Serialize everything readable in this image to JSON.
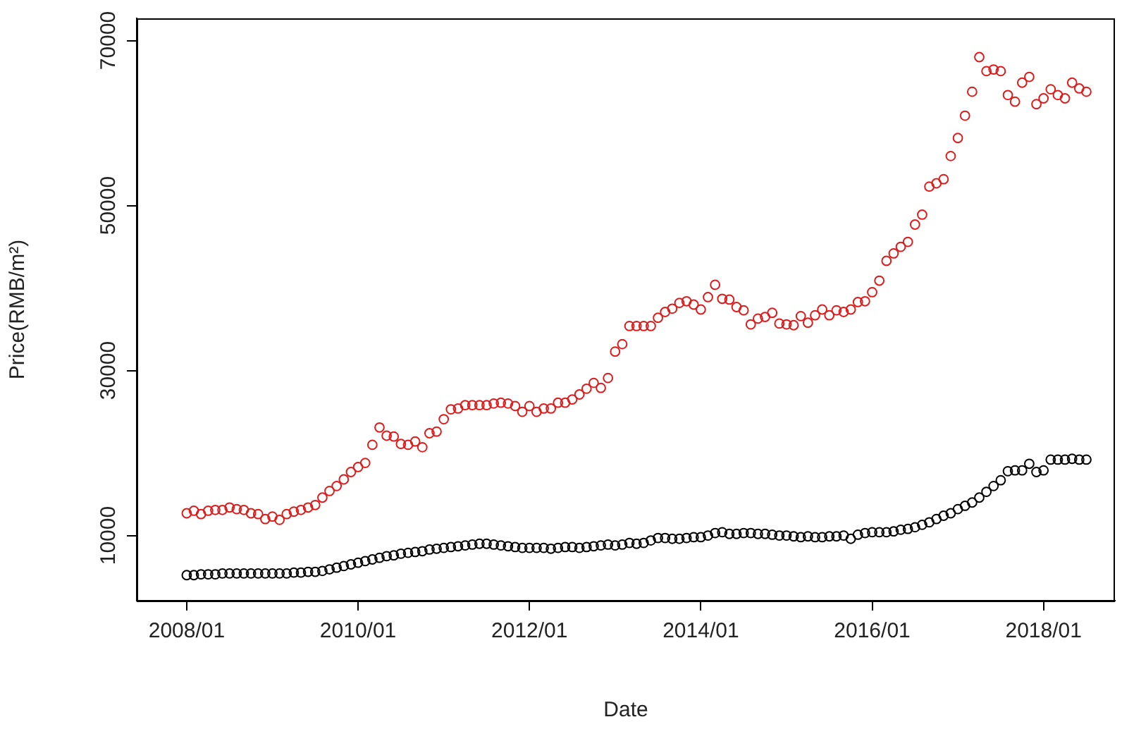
{
  "chart_data": {
    "type": "scatter",
    "xlabel": "Date",
    "ylabel": "Price(RMB/m²)",
    "marker": "circle",
    "x": [
      "2008-01",
      "2008-02",
      "2008-03",
      "2008-04",
      "2008-05",
      "2008-06",
      "2008-07",
      "2008-08",
      "2008-09",
      "2008-10",
      "2008-11",
      "2008-12",
      "2009-01",
      "2009-02",
      "2009-03",
      "2009-04",
      "2009-05",
      "2009-06",
      "2009-07",
      "2009-08",
      "2009-09",
      "2009-10",
      "2009-11",
      "2009-12",
      "2010-01",
      "2010-02",
      "2010-03",
      "2010-04",
      "2010-05",
      "2010-06",
      "2010-07",
      "2010-08",
      "2010-09",
      "2010-10",
      "2010-11",
      "2010-12",
      "2011-01",
      "2011-02",
      "2011-03",
      "2011-04",
      "2011-05",
      "2011-06",
      "2011-07",
      "2011-08",
      "2011-09",
      "2011-10",
      "2011-11",
      "2011-12",
      "2012-01",
      "2012-02",
      "2012-03",
      "2012-04",
      "2012-05",
      "2012-06",
      "2012-07",
      "2012-08",
      "2012-09",
      "2012-10",
      "2012-11",
      "2012-12",
      "2013-01",
      "2013-02",
      "2013-03",
      "2013-04",
      "2013-05",
      "2013-06",
      "2013-07",
      "2013-08",
      "2013-09",
      "2013-10",
      "2013-11",
      "2013-12",
      "2014-01",
      "2014-02",
      "2014-03",
      "2014-04",
      "2014-05",
      "2014-06",
      "2014-07",
      "2014-08",
      "2014-09",
      "2014-10",
      "2014-11",
      "2014-12",
      "2015-01",
      "2015-02",
      "2015-03",
      "2015-04",
      "2015-05",
      "2015-06",
      "2015-07",
      "2015-08",
      "2015-09",
      "2015-10",
      "2015-11",
      "2015-12",
      "2016-01",
      "2016-02",
      "2016-03",
      "2016-04",
      "2016-05",
      "2016-06",
      "2016-07",
      "2016-08",
      "2016-09",
      "2016-10",
      "2016-11",
      "2016-12",
      "2017-01",
      "2017-02",
      "2017-03",
      "2017-04",
      "2017-05",
      "2017-06",
      "2017-07",
      "2017-08",
      "2017-09",
      "2017-10",
      "2017-11",
      "2017-12",
      "2018-01",
      "2018-02",
      "2018-03",
      "2018-04",
      "2018-05",
      "2018-06",
      "2018-07"
    ],
    "series": [
      {
        "color": "#dd1c1c",
        "values": [
          12700,
          13000,
          12600,
          13000,
          13100,
          13100,
          13400,
          13200,
          13100,
          12700,
          12600,
          12000,
          12300,
          11900,
          12600,
          12900,
          13100,
          13400,
          13700,
          14600,
          15400,
          16000,
          16800,
          17700,
          18300,
          18800,
          21000,
          23100,
          22100,
          22000,
          21100,
          21000,
          21400,
          20700,
          22400,
          22600,
          24100,
          25300,
          25400,
          25800,
          25800,
          25800,
          25800,
          26000,
          26100,
          26000,
          25700,
          25000,
          25700,
          25000,
          25400,
          25400,
          26100,
          26100,
          26500,
          27100,
          27800,
          28500,
          27900,
          29100,
          32300,
          33200,
          35400,
          35400,
          35400,
          35400,
          36400,
          37100,
          37500,
          38200,
          38400,
          38000,
          37400,
          38900,
          40400,
          38700,
          38600,
          37700,
          37300,
          35600,
          36300,
          36500,
          37000,
          35700,
          35600,
          35500,
          36600,
          35800,
          36700,
          37400,
          36700,
          37300,
          37100,
          37400,
          38300,
          38400,
          39500,
          40900,
          43300,
          44200,
          45000,
          45600,
          47700,
          48900,
          52300,
          52700,
          53200,
          56000,
          58200,
          60900,
          63800,
          68000,
          66300,
          66500,
          66300,
          63400,
          62600,
          64900,
          65600,
          62300,
          63000,
          64100,
          63400,
          63000,
          64900,
          64200,
          63800
        ]
      },
      {
        "color": "#000000",
        "values": [
          5200,
          5200,
          5300,
          5300,
          5300,
          5400,
          5400,
          5400,
          5400,
          5400,
          5400,
          5400,
          5400,
          5400,
          5400,
          5500,
          5500,
          5600,
          5600,
          5700,
          5900,
          6100,
          6300,
          6500,
          6700,
          6900,
          7100,
          7300,
          7500,
          7600,
          7800,
          7900,
          8000,
          8100,
          8300,
          8400,
          8500,
          8600,
          8700,
          8800,
          8900,
          9000,
          9000,
          8900,
          8800,
          8700,
          8600,
          8500,
          8500,
          8500,
          8500,
          8400,
          8500,
          8600,
          8600,
          8500,
          8600,
          8700,
          8800,
          8900,
          8800,
          8900,
          9100,
          9000,
          9100,
          9400,
          9700,
          9700,
          9600,
          9600,
          9700,
          9800,
          9800,
          10000,
          10300,
          10400,
          10200,
          10200,
          10300,
          10300,
          10200,
          10200,
          10100,
          10000,
          10000,
          9900,
          9800,
          9900,
          9800,
          9800,
          9900,
          9900,
          10000,
          9600,
          10100,
          10300,
          10400,
          10400,
          10400,
          10500,
          10700,
          10800,
          11000,
          11300,
          11600,
          12000,
          12400,
          12700,
          13200,
          13600,
          14000,
          14600,
          15300,
          16000,
          16700,
          17800,
          17900,
          17900,
          18700,
          17700,
          17900,
          19200,
          19200,
          19200,
          19300,
          19200,
          19200
        ]
      }
    ],
    "xlim": [
      "2007-06",
      "2018-11"
    ],
    "xticks": [
      {
        "value": "2008-01",
        "label": "2008/01"
      },
      {
        "value": "2010-01",
        "label": "2010/01"
      },
      {
        "value": "2012-01",
        "label": "2012/01"
      },
      {
        "value": "2014-01",
        "label": "2014/01"
      },
      {
        "value": "2016-01",
        "label": "2016/01"
      },
      {
        "value": "2018-01",
        "label": "2018/01"
      }
    ],
    "ylim": [
      2100,
      72700
    ],
    "yticks": [
      10000,
      30000,
      50000,
      70000
    ]
  }
}
